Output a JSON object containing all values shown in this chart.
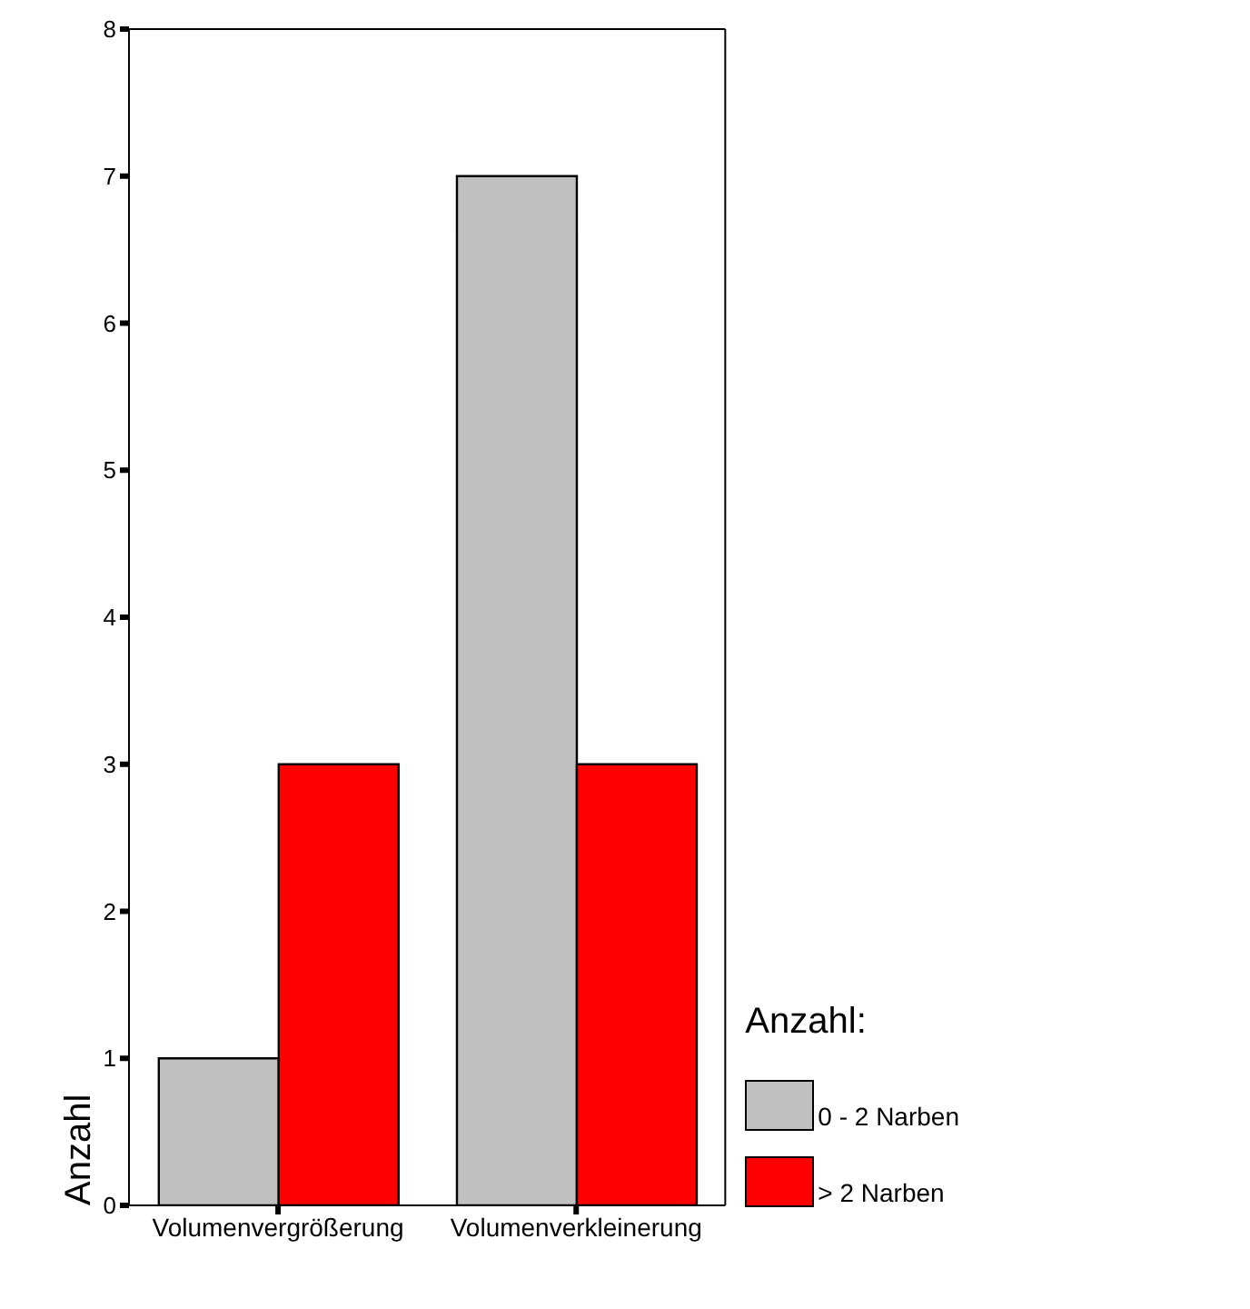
{
  "chart_data": {
    "type": "bar",
    "ylabel": "Anzahl",
    "legend_title": "Anzahl:",
    "categories": [
      "Volumenvergrößerung",
      "Volumenverkleinerung"
    ],
    "series": [
      {
        "name": "0 - 2 Narben",
        "color": "#c0c0c0",
        "values": [
          1,
          7
        ]
      },
      {
        "name": "> 2 Narben",
        "color": "#ff0000",
        "values": [
          3,
          3
        ]
      }
    ],
    "ylim": [
      0,
      8
    ],
    "yticks": [
      0,
      1,
      2,
      3,
      4,
      5,
      6,
      7,
      8
    ],
    "grid": false,
    "legend": "bottom right"
  }
}
